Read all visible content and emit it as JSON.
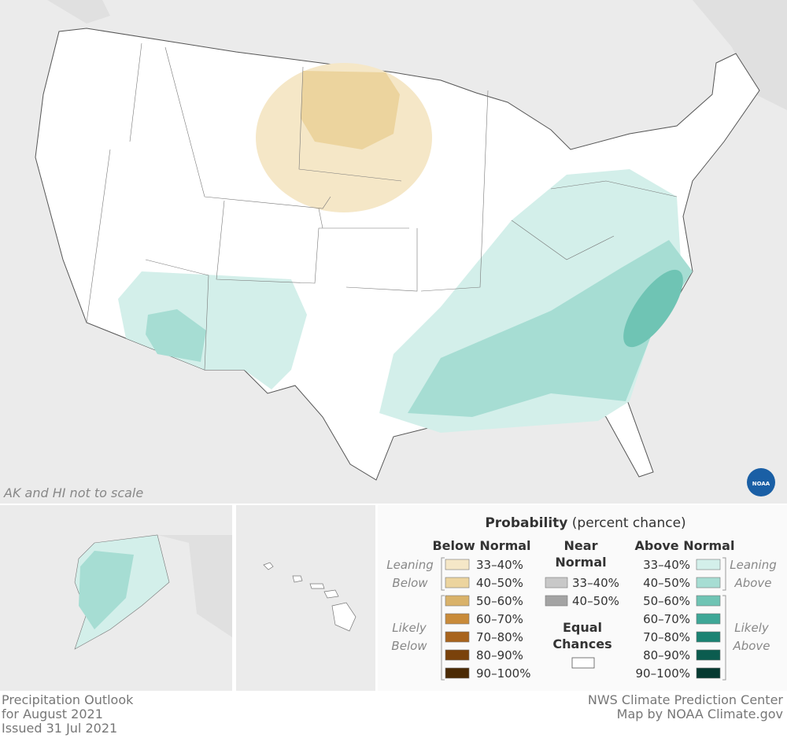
{
  "map": {
    "note": "AK and HI not to scale",
    "footer_left": [
      "Precipitation Outlook",
      "for August 2021",
      "Issued 31 Jul 2021"
    ],
    "footer_right": [
      "NWS Climate Prediction Center",
      "Map by NOAA Climate.gov"
    ],
    "logo": "NOAA",
    "legend": {
      "title": "Probability",
      "subtitle": "(percent chance)",
      "below": {
        "heading": [
          "Below Normal"
        ],
        "items": [
          {
            "label": "33–40%",
            "color": "#f5e7c7"
          },
          {
            "label": "40–50%",
            "color": "#ecd49e"
          },
          {
            "label": "50–60%",
            "color": "#d9b26a"
          },
          {
            "label": "60–70%",
            "color": "#c98b3a"
          },
          {
            "label": "70–80%",
            "color": "#a8641d"
          },
          {
            "label": "80–90%",
            "color": "#7a420b"
          },
          {
            "label": "90–100%",
            "color": "#4b2a05"
          }
        ]
      },
      "near": {
        "heading": [
          "Near",
          "Normal"
        ],
        "items": [
          {
            "label": "33–40%",
            "color": "#c8c8c8"
          },
          {
            "label": "40–50%",
            "color": "#a3a3a3"
          }
        ]
      },
      "equal": {
        "heading": [
          "Equal",
          "Chances"
        ],
        "color": "#ffffff"
      },
      "above": {
        "heading": [
          "Above Normal"
        ],
        "items": [
          {
            "label": "33–40%",
            "color": "#d3efea"
          },
          {
            "label": "40–50%",
            "color": "#a6ddd3"
          },
          {
            "label": "50–60%",
            "color": "#6fc4b4"
          },
          {
            "label": "60–70%",
            "color": "#3ea797"
          },
          {
            "label": "70–80%",
            "color": "#1b8373"
          },
          {
            "label": "80–90%",
            "color": "#0b5c4f"
          },
          {
            "label": "90–100%",
            "color": "#063a31"
          }
        ]
      },
      "leaning_below": [
        "Leaning",
        "Below"
      ],
      "likely_below": [
        "Likely",
        "Below"
      ],
      "leaning_above": [
        "Leaning",
        "Above"
      ],
      "likely_above": [
        "Likely",
        "Above"
      ]
    }
  }
}
